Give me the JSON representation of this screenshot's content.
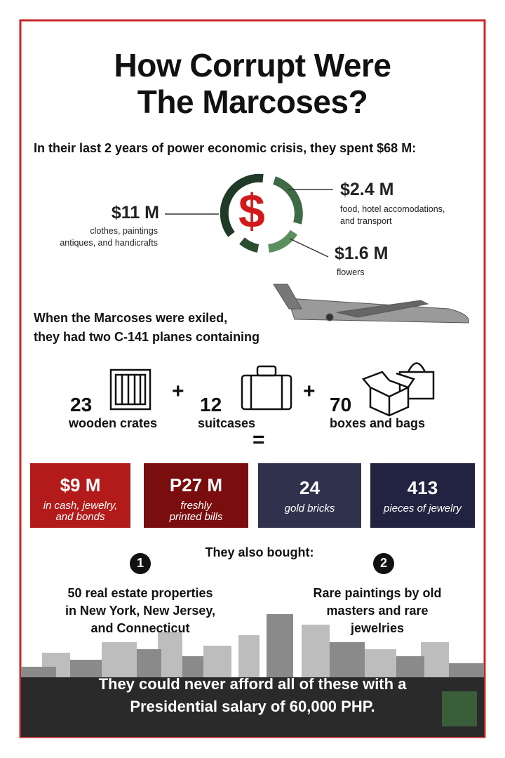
{
  "header": {
    "title_lines": [
      "How Corrupt Were",
      "The Marcoses?"
    ],
    "intro": "In their last 2 years of power economic crisis, they spent $68 M:"
  },
  "spending": {
    "icon": "$",
    "items": [
      {
        "amount": "$11 M",
        "description_lines": [
          "clothes, paintings",
          "antiques, and handicrafts"
        ]
      },
      {
        "amount": "$2.4 M",
        "description_lines": [
          "food, hotel accomodations,",
          "and transport"
        ]
      },
      {
        "amount": "$1.6 M",
        "description_lines": [
          "flowers"
        ]
      }
    ]
  },
  "exile": {
    "text_lines": [
      "When the Marcoses were exiled,",
      "they had two C-141 planes containing"
    ]
  },
  "containers": {
    "items": [
      {
        "count": "23",
        "label": "wooden crates"
      },
      {
        "count": "12",
        "label": "suitcases"
      },
      {
        "count": "70",
        "label": "boxes and bags"
      }
    ],
    "operators": [
      "+",
      "+",
      "="
    ]
  },
  "contents": [
    {
      "value": "$9 M",
      "label_lines": [
        "in cash, jewelry,",
        "and bonds"
      ]
    },
    {
      "value": "P27 M",
      "label_lines": [
        "freshly",
        "printed bills"
      ]
    },
    {
      "value": "24",
      "label_lines": [
        "gold bricks"
      ]
    },
    {
      "value": "413",
      "label_lines": [
        "pieces of jewelry"
      ]
    }
  ],
  "also_bought": {
    "heading": "They also bought:",
    "items": [
      {
        "number": "1",
        "text_lines": [
          "50 real estate properties",
          "in New York, New Jersey,",
          "and Connecticut"
        ]
      },
      {
        "number": "2",
        "text_lines": [
          "Rare paintings by old",
          "masters and rare",
          "jewelries"
        ]
      }
    ]
  },
  "footer": {
    "text_lines": [
      "They could never afford all of these with a",
      "Presidential salary of 60,000 PHP."
    ]
  }
}
